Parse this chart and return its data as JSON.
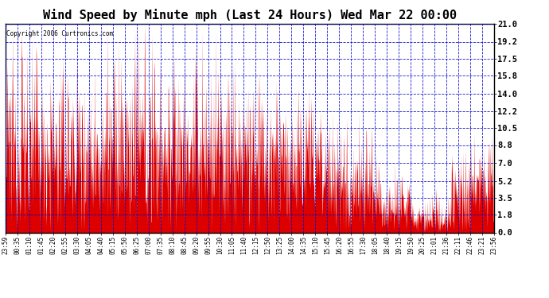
{
  "title": "Wind Speed by Minute mph (Last 24 Hours) Wed Mar 22 00:00",
  "copyright": "Copyright 2006 Curtronics.com",
  "yticks": [
    0.0,
    1.8,
    3.5,
    5.2,
    7.0,
    8.8,
    10.5,
    12.2,
    14.0,
    15.8,
    17.5,
    19.2,
    21.0
  ],
  "ylim": [
    0.0,
    21.0
  ],
  "background_color": "#ffffff",
  "fill_color": "#dd0000",
  "grid_color": "#0000cc",
  "title_fontsize": 11,
  "xtick_labels": [
    "23:59",
    "00:35",
    "01:10",
    "01:45",
    "02:20",
    "02:55",
    "03:30",
    "04:05",
    "04:40",
    "05:15",
    "05:50",
    "06:25",
    "07:00",
    "07:35",
    "08:10",
    "08:45",
    "09:20",
    "09:55",
    "10:30",
    "11:05",
    "11:40",
    "12:15",
    "12:50",
    "13:25",
    "14:00",
    "14:35",
    "15:10",
    "15:45",
    "16:20",
    "16:55",
    "17:30",
    "18:05",
    "18:40",
    "19:15",
    "19:50",
    "20:25",
    "21:01",
    "21:36",
    "22:11",
    "22:46",
    "23:21",
    "23:56"
  ],
  "seed": 12345
}
